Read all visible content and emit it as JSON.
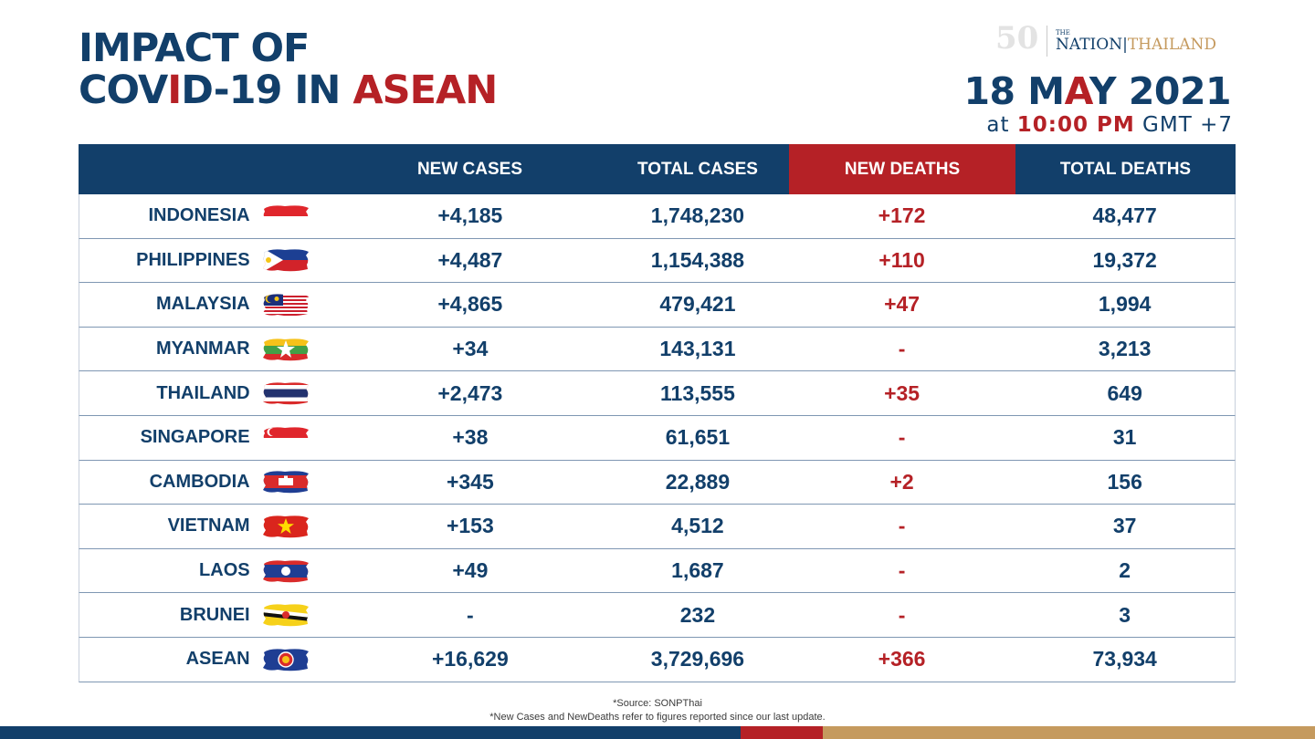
{
  "title": {
    "line1": "IMPACT OF",
    "line2a": "COV",
    "line2b": "I",
    "line2c": "D-19 IN ",
    "line2d": "ASEAN"
  },
  "brand": {
    "anniversary": "50",
    "the": "THE",
    "nation": "NATION",
    "thailand": "THAILAND"
  },
  "date": {
    "day": "18 M",
    "month_accent": "A",
    "rest": "Y 2021"
  },
  "time": {
    "prefix": "at ",
    "clock": "10:00 PM",
    "zone": " GMT +7"
  },
  "columns": [
    "NEW CASES",
    "TOTAL CASES",
    "NEW DEATHS",
    "TOTAL DEATHS"
  ],
  "rows": [
    {
      "country": "INDONESIA",
      "flag": "indonesia-flag-icon",
      "new_cases": "+4,185",
      "total_cases": "1,748,230",
      "new_deaths": "+172",
      "total_deaths": "48,477"
    },
    {
      "country": "PHILIPPINES",
      "flag": "philippines-flag-icon",
      "new_cases": "+4,487",
      "total_cases": "1,154,388",
      "new_deaths": "+110",
      "total_deaths": "19,372"
    },
    {
      "country": "MALAYSIA",
      "flag": "malaysia-flag-icon",
      "new_cases": "+4,865",
      "total_cases": "479,421",
      "new_deaths": "+47",
      "total_deaths": "1,994"
    },
    {
      "country": "MYANMAR",
      "flag": "myanmar-flag-icon",
      "new_cases": "+34",
      "total_cases": "143,131",
      "new_deaths": "-",
      "total_deaths": "3,213"
    },
    {
      "country": "THAILAND",
      "flag": "thailand-flag-icon",
      "new_cases": "+2,473",
      "total_cases": "113,555",
      "new_deaths": "+35",
      "total_deaths": "649"
    },
    {
      "country": "SINGAPORE",
      "flag": "singapore-flag-icon",
      "new_cases": "+38",
      "total_cases": "61,651",
      "new_deaths": "-",
      "total_deaths": "31"
    },
    {
      "country": "CAMBODIA",
      "flag": "cambodia-flag-icon",
      "new_cases": "+345",
      "total_cases": "22,889",
      "new_deaths": "+2",
      "total_deaths": "156"
    },
    {
      "country": "VIETNAM",
      "flag": "vietnam-flag-icon",
      "new_cases": "+153",
      "total_cases": "4,512",
      "new_deaths": "-",
      "total_deaths": "37"
    },
    {
      "country": "LAOS",
      "flag": "laos-flag-icon",
      "new_cases": "+49",
      "total_cases": "1,687",
      "new_deaths": "-",
      "total_deaths": "2"
    },
    {
      "country": "BRUNEI",
      "flag": "brunei-flag-icon",
      "new_cases": "-",
      "total_cases": "232",
      "new_deaths": "-",
      "total_deaths": "3"
    },
    {
      "country": "ASEAN",
      "flag": "asean-flag-icon",
      "new_cases": "+16,629",
      "total_cases": "3,729,696",
      "new_deaths": "+366",
      "total_deaths": "73,934"
    }
  ],
  "notes": {
    "source": "*Source: SONPThai",
    "disclaimer": "*New Cases and NewDeaths refer to figures reported since our last update."
  },
  "colors": {
    "navy": "#123f6a",
    "red": "#b52126",
    "gold": "#c59a5e"
  }
}
